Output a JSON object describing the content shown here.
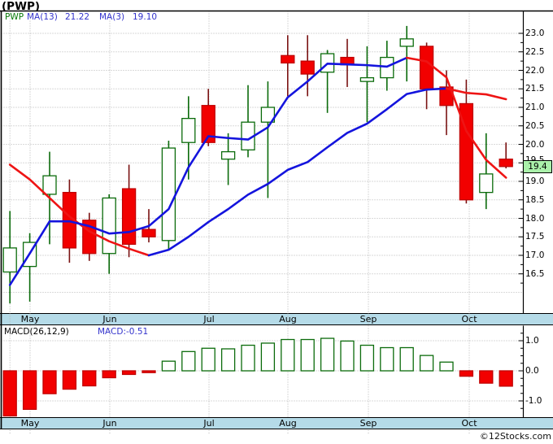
{
  "title": "(PWP)",
  "copyright": "©12Stocks.com",
  "months": [
    "May",
    "Jun",
    "Jul",
    "Aug",
    "Sep",
    "Oct"
  ],
  "price_pane": {
    "legend": {
      "symbol": "PWP",
      "ma13_label": "MA(13)",
      "ma13_value": "21.22",
      "ma3_label": "MA(3)",
      "ma3_value": "19.10"
    },
    "price_tag": "19.4"
  },
  "macd_pane": {
    "legend_left": "MACD(26,12,9)",
    "legend_right": "MACD:-0.51"
  },
  "colors": {
    "accent_blue": "#1414dd",
    "accent_red": "#ee1414",
    "candle_up_border": "#0b6b0b",
    "candle_up_fill": "#ffffff",
    "candle_down_fill": "#f20000",
    "candle_down_border": "#c00000",
    "candle_down_wick": "#7a1212",
    "grid": "#b5b5b5",
    "month_bar_bg": "#b5dbe8",
    "price_tag_bg": "#aaf0aa",
    "legend_green": "#067806",
    "legend_blue": "#3333cc"
  },
  "chart_data": [
    {
      "type": "candlestick",
      "title": "PWP weekly candlestick chart with MA(13) and MA(3) overlays",
      "x_axis": {
        "tick_labels": [
          "May",
          "Jun",
          "Jul",
          "Aug",
          "Sep",
          "Oct"
        ]
      },
      "y_axis": {
        "min": 15.5,
        "max": 23.2,
        "grid": true,
        "tick_labels": [
          "23.0",
          "22.5",
          "22.0",
          "21.5",
          "21.0",
          "20.5",
          "20.0",
          "19.5",
          "19.0",
          "18.5",
          "18.0",
          "17.5",
          "17.0",
          "16.5"
        ]
      },
      "last_price": 19.4,
      "candles": [
        {
          "o": 16.55,
          "h": 18.2,
          "l": 15.7,
          "c": 17.2
        },
        {
          "o": 16.7,
          "h": 17.6,
          "l": 15.75,
          "c": 17.35
        },
        {
          "o": 18.65,
          "h": 19.8,
          "l": 17.3,
          "c": 19.15
        },
        {
          "o": 18.7,
          "h": 19.05,
          "l": 16.8,
          "c": 17.2
        },
        {
          "o": 17.95,
          "h": 18.15,
          "l": 16.85,
          "c": 17.05
        },
        {
          "o": 17.05,
          "h": 18.65,
          "l": 16.5,
          "c": 18.55
        },
        {
          "o": 18.8,
          "h": 19.45,
          "l": 16.95,
          "c": 17.3
        },
        {
          "o": 17.7,
          "h": 18.25,
          "l": 17.35,
          "c": 17.5
        },
        {
          "o": 17.4,
          "h": 20.1,
          "l": 17.15,
          "c": 19.9
        },
        {
          "o": 20.05,
          "h": 21.3,
          "l": 19.05,
          "c": 20.7
        },
        {
          "o": 21.05,
          "h": 21.5,
          "l": 19.95,
          "c": 20.05
        },
        {
          "o": 19.6,
          "h": 20.3,
          "l": 18.9,
          "c": 19.8
        },
        {
          "o": 19.85,
          "h": 21.6,
          "l": 19.65,
          "c": 20.6
        },
        {
          "o": 20.6,
          "h": 21.7,
          "l": 18.55,
          "c": 21.0
        },
        {
          "o": 22.4,
          "h": 22.95,
          "l": 21.3,
          "c": 22.2
        },
        {
          "o": 22.25,
          "h": 22.95,
          "l": 21.3,
          "c": 21.9
        },
        {
          "o": 21.95,
          "h": 22.55,
          "l": 20.85,
          "c": 22.45
        },
        {
          "o": 22.35,
          "h": 22.85,
          "l": 21.55,
          "c": 22.15
        },
        {
          "o": 21.7,
          "h": 22.65,
          "l": 20.6,
          "c": 21.8
        },
        {
          "o": 21.8,
          "h": 22.8,
          "l": 21.45,
          "c": 22.35
        },
        {
          "o": 22.65,
          "h": 23.2,
          "l": 21.7,
          "c": 22.85
        },
        {
          "o": 22.65,
          "h": 22.75,
          "l": 20.95,
          "c": 21.5
        },
        {
          "o": 21.55,
          "h": 22.0,
          "l": 20.25,
          "c": 21.05
        },
        {
          "o": 21.1,
          "h": 21.75,
          "l": 18.4,
          "c": 18.5
        },
        {
          "o": 18.7,
          "h": 20.3,
          "l": 18.25,
          "c": 19.2
        },
        {
          "o": 19.6,
          "h": 20.05,
          "l": 19.35,
          "c": 19.4
        }
      ],
      "series": [
        {
          "name": "MA(13)",
          "current": 21.22,
          "values": [
            19.45,
            19.05,
            18.55,
            18.05,
            17.65,
            17.38,
            17.18,
            17.0,
            17.15,
            17.5,
            17.9,
            18.25,
            18.64,
            18.93,
            19.31,
            19.52,
            19.92,
            20.31,
            20.56,
            20.95,
            21.36,
            21.48,
            21.51,
            21.39,
            21.35,
            21.22
          ],
          "segments": [
            {
              "from": 0,
              "to": 7,
              "trend": "down"
            },
            {
              "from": 7,
              "to": 22,
              "trend": "up"
            },
            {
              "from": 22,
              "to": 25,
              "trend": "down"
            }
          ]
        },
        {
          "name": "MA(3)",
          "current": 19.1,
          "values": [
            16.2,
            17.05,
            17.92,
            17.92,
            17.79,
            17.59,
            17.63,
            17.79,
            18.25,
            19.38,
            20.22,
            20.17,
            20.13,
            20.46,
            21.27,
            21.7,
            22.18,
            22.16,
            22.14,
            22.1,
            22.34,
            22.24,
            21.81,
            20.36,
            19.58,
            19.1
          ],
          "segments": [
            {
              "from": 0,
              "to": 20,
              "trend": "up"
            },
            {
              "from": 20,
              "to": 25,
              "trend": "down"
            }
          ]
        }
      ]
    },
    {
      "type": "bar",
      "title": "MACD(26,12,9) histogram",
      "current": -0.51,
      "y_axis": {
        "min": -1.6,
        "max": 1.3,
        "tick_labels": [
          "1.0",
          "0.0",
          "-1.0"
        ]
      },
      "values": [
        -1.53,
        -1.28,
        -0.76,
        -0.61,
        -0.5,
        -0.23,
        -0.12,
        -0.06,
        0.32,
        0.64,
        0.75,
        0.73,
        0.85,
        0.92,
        1.04,
        1.04,
        1.08,
        0.99,
        0.85,
        0.77,
        0.77,
        0.51,
        0.29,
        -0.18,
        -0.41,
        -0.51
      ]
    }
  ]
}
